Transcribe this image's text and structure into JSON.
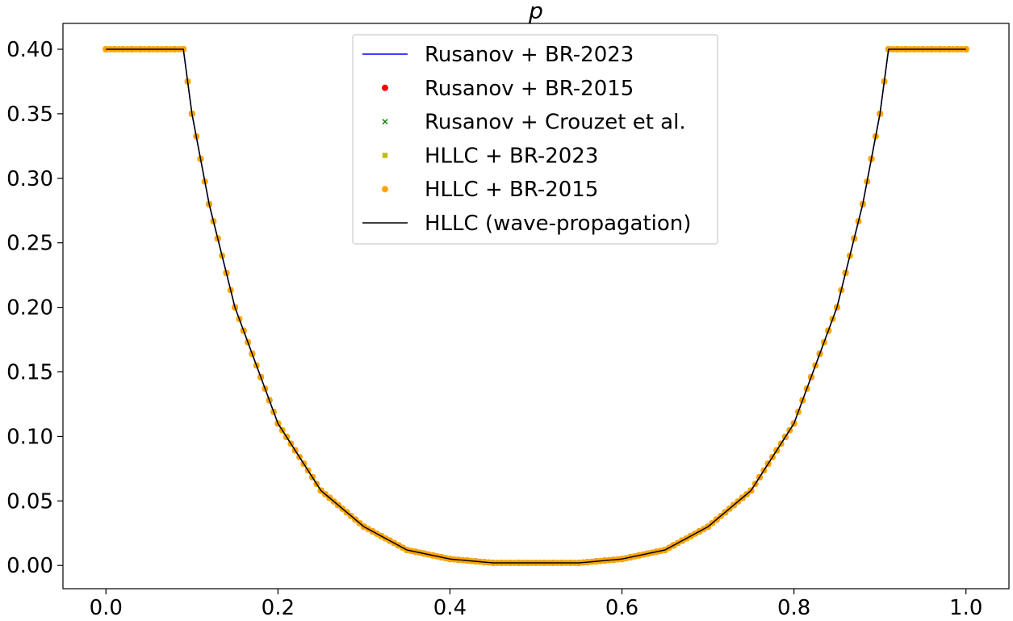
{
  "chart_data": {
    "type": "line",
    "title": "p",
    "xlabel": "",
    "ylabel": "",
    "xlim": [
      -0.05,
      1.05
    ],
    "ylim": [
      -0.018,
      0.42
    ],
    "xticks": [
      0.0,
      0.2,
      0.4,
      0.6,
      0.8,
      1.0
    ],
    "xtick_labels": [
      "0.0",
      "0.2",
      "0.4",
      "0.6",
      "0.8",
      "1.0"
    ],
    "yticks": [
      0.0,
      0.05,
      0.1,
      0.15,
      0.2,
      0.25,
      0.3,
      0.35,
      0.4
    ],
    "ytick_labels": [
      "0.00",
      "0.05",
      "0.10",
      "0.15",
      "0.20",
      "0.25",
      "0.30",
      "0.35",
      "0.40"
    ],
    "grid": false,
    "legend_position": "upper-center",
    "profile_knots": {
      "x": [
        0.0,
        0.09,
        0.1,
        0.12,
        0.15,
        0.2,
        0.25,
        0.3,
        0.35,
        0.4,
        0.45,
        0.5,
        0.55,
        0.6,
        0.65,
        0.7,
        0.75,
        0.8,
        0.85,
        0.88,
        0.9,
        0.91,
        1.0
      ],
      "y": [
        0.4,
        0.4,
        0.35,
        0.28,
        0.2,
        0.11,
        0.058,
        0.03,
        0.012,
        0.005,
        0.002,
        0.002,
        0.002,
        0.005,
        0.012,
        0.03,
        0.058,
        0.11,
        0.2,
        0.28,
        0.35,
        0.4,
        0.4
      ]
    },
    "series": [
      {
        "name": "Rusanov + BR-2023",
        "marker": "line",
        "color": "#0000ff",
        "point_count": 201
      },
      {
        "name": "Rusanov + BR-2015",
        "marker": "circle",
        "color": "#ff0000",
        "point_count": 101
      },
      {
        "name": "Rusanov + Crouzet et al.",
        "marker": "x",
        "color": "#008000",
        "point_count": 101
      },
      {
        "name": "HLLC + BR-2023",
        "marker": "square",
        "color": "#bfbf00",
        "point_count": 201
      },
      {
        "name": "HLLC + BR-2015",
        "marker": "circle",
        "color": "#ffa500",
        "point_count": 201
      },
      {
        "name": "HLLC (wave-propagation)",
        "marker": "line",
        "color": "#000000",
        "point_count": 401
      }
    ]
  }
}
